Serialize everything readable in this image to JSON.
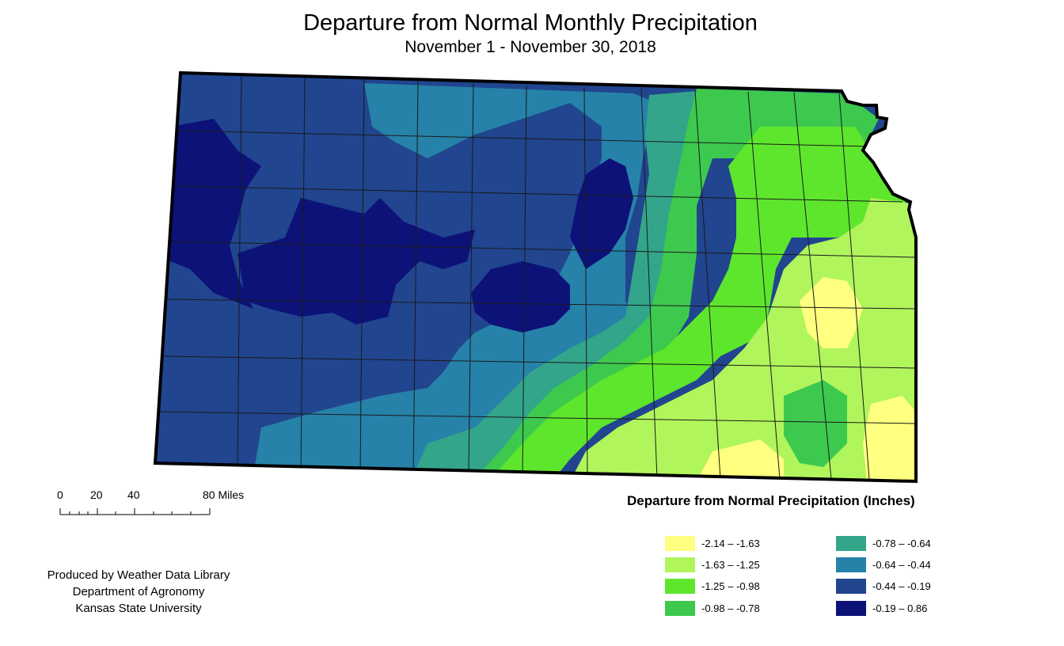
{
  "title": "Departure from Normal Monthly Precipitation",
  "subtitle": "November 1 - November 30, 2018",
  "scale_bar": {
    "labels": [
      "0",
      "20",
      "40",
      "80 Miles"
    ]
  },
  "credits": [
    "Produced by Weather Data Library",
    "Department of Agronomy",
    "Kansas State University"
  ],
  "legend": {
    "title": "Departure from Normal Precipitation (Inches)",
    "classes": [
      {
        "label": "-2.14 – -1.63",
        "color": "#ffff80"
      },
      {
        "label": "-1.63 – -1.25",
        "color": "#b0f55c"
      },
      {
        "label": "-1.25 – -0.98",
        "color": "#5ee62d"
      },
      {
        "label": "-0.98 – -0.78",
        "color": "#3dc94e"
      },
      {
        "label": "-0.78 – -0.64",
        "color": "#33a58b"
      },
      {
        "label": "-0.64 – -0.44",
        "color": "#2682a8"
      },
      {
        "label": "-0.44 – -0.19",
        "color": "#21458f"
      },
      {
        "label": "-0.19 – 0.86",
        "color": "#0d1278"
      }
    ]
  },
  "colors": {
    "state_outline": "#000000",
    "county_lines": "#1a1a1a"
  }
}
